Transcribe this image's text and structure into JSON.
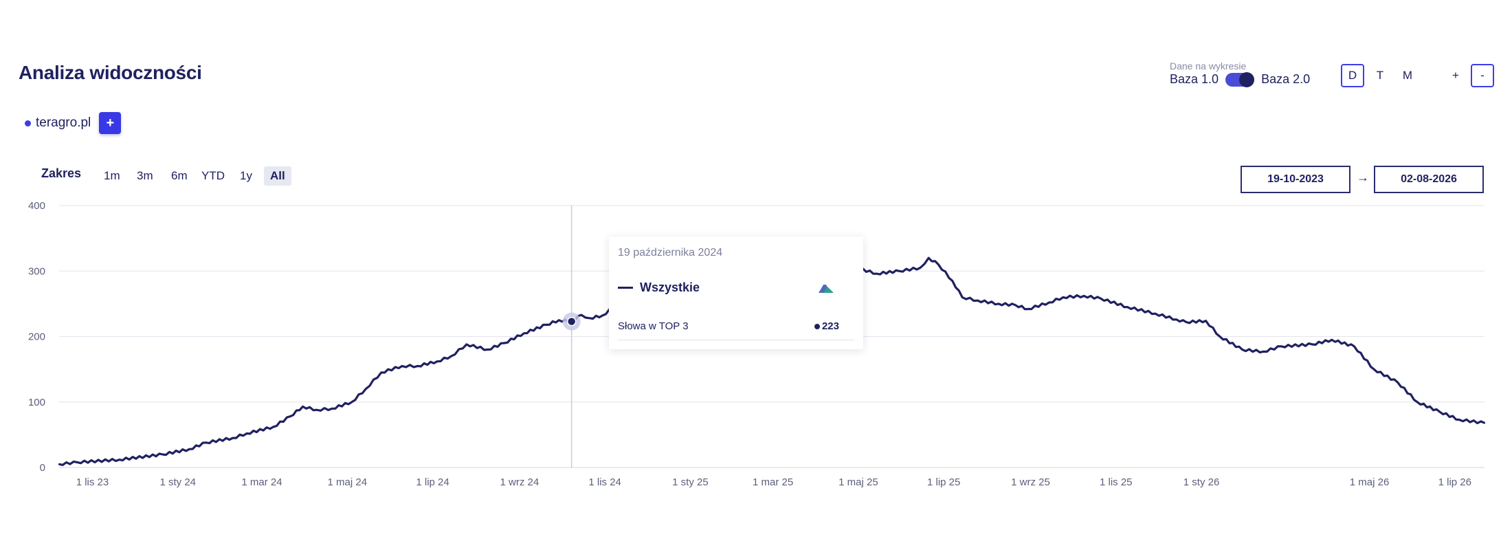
{
  "header": {
    "title": "Analiza widoczności"
  },
  "domain": {
    "name": "teragro.pl",
    "add_label": "+"
  },
  "data_source": {
    "caption": "Dane na wykresie",
    "option_left": "Baza 1.0",
    "option_right": "Baza 2.0",
    "selected": "Baza 2.0"
  },
  "period_buttons": [
    {
      "label": "D",
      "active": true
    },
    {
      "label": "T",
      "active": false
    },
    {
      "label": "M",
      "active": false
    }
  ],
  "zoom": {
    "in_label": "+",
    "out_label": "-"
  },
  "range": {
    "label": "Zakres",
    "options": [
      {
        "label": "1m",
        "active": false
      },
      {
        "label": "3m",
        "active": false
      },
      {
        "label": "6m",
        "active": false
      },
      {
        "label": "YTD",
        "active": false
      },
      {
        "label": "1y",
        "active": false
      },
      {
        "label": "All",
        "active": true
      }
    ],
    "from": "19-10-2023",
    "arrow": "→",
    "to": "02-08-2026"
  },
  "tooltip": {
    "date": "19 października 2024",
    "series_name": "Wszystkie",
    "icon": "mountain-icon",
    "row_label": "Słowa w TOP 3",
    "row_value": "223"
  },
  "colors": {
    "accent": "#3838e4",
    "line": "#1f2160",
    "grid": "#e3e4ec"
  },
  "chart_data": {
    "type": "line",
    "title": "",
    "xlabel": "",
    "ylabel": "",
    "ylim": [
      0,
      400
    ],
    "yticks": [
      0,
      100,
      200,
      300,
      400
    ],
    "xlim": [
      "2023-10-19",
      "2026-08-02"
    ],
    "xticks": [
      {
        "date": "2023-11-01",
        "label": "1 lis 23"
      },
      {
        "date": "2024-01-01",
        "label": "1 sty 24"
      },
      {
        "date": "2024-03-01",
        "label": "1 mar 24"
      },
      {
        "date": "2024-05-01",
        "label": "1 maj 24"
      },
      {
        "date": "2024-07-01",
        "label": "1 lip 24"
      },
      {
        "date": "2024-09-01",
        "label": "1 wrz 24"
      },
      {
        "date": "2024-11-01",
        "label": "1 lis 24"
      },
      {
        "date": "2025-01-01",
        "label": "1 sty 25"
      },
      {
        "date": "2025-03-01",
        "label": "1 mar 25"
      },
      {
        "date": "2025-05-01",
        "label": "1 maj 25"
      },
      {
        "date": "2025-07-01",
        "label": "1 lip 25"
      },
      {
        "date": "2025-09-01",
        "label": "1 wrz 25"
      },
      {
        "date": "2025-11-01",
        "label": "1 lis 25"
      },
      {
        "date": "2026-01-01",
        "label": "1 sty 26"
      },
      {
        "date": "2026-05-01",
        "label": "1 maj 26"
      },
      {
        "date": "2026-07-01",
        "label": "1 lip 26"
      }
    ],
    "grid": true,
    "legend": "none",
    "crosshair_date": "2024-10-19",
    "series": [
      {
        "name": "Wszystkie",
        "points": [
          [
            "2023-10-19",
            5
          ],
          [
            "2023-11-01",
            8
          ],
          [
            "2023-12-01",
            12
          ],
          [
            "2024-01-01",
            20
          ],
          [
            "2024-01-20",
            28
          ],
          [
            "2024-02-01",
            38
          ],
          [
            "2024-02-20",
            45
          ],
          [
            "2024-03-01",
            52
          ],
          [
            "2024-03-20",
            62
          ],
          [
            "2024-04-01",
            78
          ],
          [
            "2024-04-10",
            93
          ],
          [
            "2024-04-20",
            88
          ],
          [
            "2024-05-01",
            90
          ],
          [
            "2024-05-15",
            100
          ],
          [
            "2024-05-25",
            120
          ],
          [
            "2024-06-05",
            145
          ],
          [
            "2024-06-20",
            155
          ],
          [
            "2024-07-01",
            155
          ],
          [
            "2024-07-15",
            162
          ],
          [
            "2024-07-25",
            170
          ],
          [
            "2024-08-05",
            188
          ],
          [
            "2024-08-20",
            180
          ],
          [
            "2024-09-01",
            190
          ],
          [
            "2024-09-15",
            205
          ],
          [
            "2024-10-01",
            218
          ],
          [
            "2024-10-10",
            225
          ],
          [
            "2024-10-19",
            223
          ],
          [
            "2024-10-26",
            233
          ],
          [
            "2024-11-01",
            228
          ],
          [
            "2024-11-10",
            232
          ],
          [
            "2024-11-20",
            248
          ],
          [
            "2024-12-01",
            255
          ],
          [
            "2024-12-15",
            268
          ],
          [
            "2025-01-01",
            268
          ],
          [
            "2025-01-20",
            275
          ],
          [
            "2025-02-05",
            290
          ],
          [
            "2025-02-15",
            297
          ],
          [
            "2025-02-25",
            282
          ],
          [
            "2025-03-10",
            290
          ],
          [
            "2025-03-25",
            280
          ],
          [
            "2025-04-10",
            283
          ],
          [
            "2025-04-20",
            290
          ],
          [
            "2025-05-01",
            300
          ],
          [
            "2025-05-10",
            305
          ],
          [
            "2025-05-25",
            296
          ],
          [
            "2025-06-10",
            300
          ],
          [
            "2025-06-25",
            305
          ],
          [
            "2025-07-01",
            320
          ],
          [
            "2025-07-08",
            310
          ],
          [
            "2025-07-18",
            285
          ],
          [
            "2025-07-25",
            260
          ],
          [
            "2025-08-05",
            255
          ],
          [
            "2025-08-20",
            250
          ],
          [
            "2025-09-01",
            248
          ],
          [
            "2025-09-10",
            242
          ],
          [
            "2025-09-25",
            252
          ],
          [
            "2025-10-05",
            260
          ],
          [
            "2025-10-20",
            262
          ],
          [
            "2025-11-01",
            258
          ],
          [
            "2025-11-20",
            245
          ],
          [
            "2025-12-10",
            235
          ],
          [
            "2025-12-25",
            226
          ],
          [
            "2026-01-01",
            222
          ],
          [
            "2026-01-15",
            224
          ],
          [
            "2026-01-25",
            200
          ],
          [
            "2026-02-10",
            180
          ],
          [
            "2026-02-25",
            177
          ],
          [
            "2026-03-10",
            185
          ],
          [
            "2026-04-01",
            188
          ],
          [
            "2026-04-15",
            195
          ],
          [
            "2026-05-01",
            185
          ],
          [
            "2026-05-15",
            150
          ],
          [
            "2026-06-01",
            130
          ],
          [
            "2026-06-15",
            100
          ],
          [
            "2026-07-01",
            85
          ],
          [
            "2026-07-15",
            73
          ],
          [
            "2026-08-02",
            68
          ]
        ]
      }
    ]
  }
}
